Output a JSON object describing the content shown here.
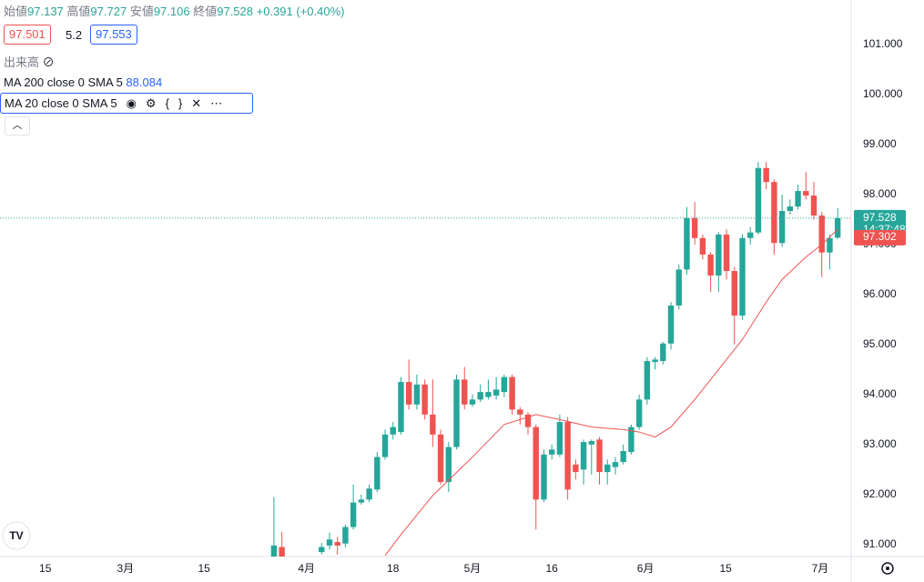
{
  "header": {
    "open_label": "始値",
    "high_label": "高値",
    "low_label": "安値",
    "close_label": "終値",
    "change": {
      "value": 0.391,
      "label": "+0.391"
    },
    "change_pct": {
      "value": 0.4,
      "label": "(+0.40%)"
    },
    "bid": 97.501,
    "spread": 5.2,
    "ask": 97.553,
    "volume_label": "出来高",
    "ma200_label": "MA 200 close 0 SMA 5",
    "ma200_value": 88.084,
    "ma20_label": "MA 20 close 0 SMA 5",
    "countdown": "14:37:48"
  },
  "chart_data": {
    "type": "candlestick",
    "up_color": "#26a69a",
    "down_color": "#ef5350",
    "x": [
      0,
      1,
      6,
      7,
      8,
      9,
      10,
      11,
      12,
      13,
      14,
      15,
      16,
      17,
      18,
      19,
      20,
      21,
      22,
      23,
      24,
      25,
      26,
      27,
      28,
      29,
      30,
      31,
      32,
      33,
      34,
      35,
      36,
      37,
      38,
      39,
      40,
      41,
      42,
      43,
      44,
      45,
      46,
      47,
      48,
      49,
      50,
      51,
      52,
      53,
      54,
      55,
      56,
      57,
      58,
      59,
      60,
      61,
      62,
      63,
      64,
      65,
      66,
      67,
      68,
      69,
      70,
      71
    ],
    "open": [
      90.7,
      90.95,
      90.85,
      90.98,
      91.05,
      91.02,
      91.35,
      91.84,
      91.9,
      92.1,
      92.75,
      93.2,
      93.25,
      94.25,
      93.8,
      94.2,
      93.6,
      93.2,
      92.25,
      92.95,
      94.3,
      93.8,
      93.9,
      93.95,
      93.98,
      94.05,
      94.35,
      93.7,
      93.6,
      93.35,
      91.9,
      92.8,
      92.8,
      93.45,
      92.6,
      92.5,
      93.0,
      93.1,
      92.45,
      92.55,
      92.65,
      92.85,
      93.35,
      93.9,
      94.65,
      94.67,
      95.02,
      95.78,
      96.5,
      97.53,
      97.13,
      96.8,
      96.38,
      97.2,
      96.47,
      95.58,
      97.13,
      97.24,
      98.53,
      98.25,
      97.03,
      97.67,
      97.76,
      98.07,
      97.98,
      97.58,
      96.84,
      97.137
    ],
    "high": [
      91.95,
      91.25,
      91.03,
      91.24,
      91.15,
      91.4,
      92.2,
      92.0,
      92.2,
      92.85,
      93.3,
      93.45,
      94.35,
      94.7,
      94.4,
      94.3,
      94.3,
      93.3,
      93.05,
      94.4,
      94.55,
      94.0,
      94.2,
      94.3,
      94.35,
      94.4,
      94.4,
      93.75,
      93.65,
      93.4,
      92.9,
      93.0,
      93.6,
      93.55,
      92.7,
      93.1,
      93.1,
      93.15,
      92.7,
      92.75,
      93.0,
      93.4,
      94.0,
      94.75,
      94.75,
      95.05,
      95.85,
      96.6,
      97.75,
      97.85,
      97.2,
      96.85,
      97.25,
      97.3,
      96.55,
      97.2,
      97.35,
      98.65,
      98.65,
      98.3,
      98.0,
      97.9,
      98.2,
      98.45,
      98.25,
      97.65,
      97.2,
      97.727
    ],
    "low": [
      90.6,
      90.6,
      90.8,
      90.9,
      90.8,
      90.95,
      91.3,
      91.8,
      91.85,
      92.05,
      92.7,
      93.1,
      93.2,
      93.7,
      93.7,
      93.5,
      92.95,
      92.2,
      92.05,
      92.9,
      93.7,
      93.75,
      93.85,
      93.9,
      93.9,
      93.95,
      93.6,
      93.4,
      93.2,
      91.3,
      91.85,
      92.7,
      92.75,
      91.9,
      92.3,
      92.2,
      92.4,
      92.2,
      92.2,
      92.4,
      92.6,
      92.8,
      93.3,
      93.8,
      94.5,
      94.6,
      94.9,
      95.7,
      96.4,
      97.0,
      96.7,
      96.05,
      96.05,
      96.3,
      95.0,
      95.5,
      97.0,
      97.2,
      98.1,
      96.8,
      96.95,
      97.6,
      97.7,
      97.9,
      97.5,
      96.35,
      96.5,
      97.106
    ],
    "close": [
      90.98,
      90.7,
      90.95,
      91.1,
      90.98,
      91.35,
      91.84,
      91.9,
      92.12,
      92.75,
      93.2,
      93.35,
      94.25,
      93.8,
      94.2,
      93.6,
      93.2,
      92.25,
      92.95,
      94.3,
      93.8,
      93.9,
      94.05,
      94.05,
      94.1,
      94.35,
      93.7,
      93.6,
      93.35,
      91.9,
      92.8,
      92.9,
      93.45,
      92.1,
      92.45,
      93.05,
      93.07,
      92.45,
      92.6,
      92.65,
      92.87,
      93.35,
      93.9,
      94.67,
      94.7,
      95.02,
      95.78,
      96.5,
      97.53,
      97.13,
      96.8,
      96.38,
      97.2,
      96.47,
      95.58,
      97.13,
      97.24,
      98.53,
      98.25,
      97.03,
      97.67,
      97.76,
      98.07,
      97.98,
      97.58,
      96.84,
      97.13,
      97.528
    ],
    "ma": {
      "color": "#ef5350",
      "x": [
        14,
        16,
        20,
        25,
        29,
        33,
        36,
        40,
        44,
        46,
        48,
        50,
        53,
        56,
        59,
        62,
        64,
        67,
        69,
        71
      ],
      "values": [
        90.78,
        91.2,
        91.98,
        92.75,
        93.4,
        93.6,
        93.5,
        93.35,
        93.3,
        93.25,
        93.15,
        93.35,
        93.9,
        94.5,
        95.1,
        95.85,
        96.3,
        96.75,
        97.0,
        97.302
      ]
    },
    "xlim": [
      -34.5,
      72.7
    ],
    "ylim": [
      90.76,
      101.89
    ],
    "xticks": [
      {
        "value": -28.8,
        "label": "15"
      },
      {
        "value": -18.7,
        "label": "3月"
      },
      {
        "value": -8.8,
        "label": "15"
      },
      {
        "value": 4.1,
        "label": "4月"
      },
      {
        "value": 15,
        "label": "18"
      },
      {
        "value": 25,
        "label": "5月"
      },
      {
        "value": 35,
        "label": "16"
      },
      {
        "value": 46.8,
        "label": "6月"
      },
      {
        "value": 56.9,
        "label": "15"
      },
      {
        "value": 68.8,
        "label": "7月"
      }
    ],
    "yticks": [
      {
        "value": 91,
        "label": "91.000"
      },
      {
        "value": 92,
        "label": "92.000"
      },
      {
        "value": 93,
        "label": "93.000"
      },
      {
        "value": 94,
        "label": "94.000"
      },
      {
        "value": 95,
        "label": "95.000"
      },
      {
        "value": 96,
        "label": "96.000"
      },
      {
        "value": 97,
        "label": "97.000"
      },
      {
        "value": 98,
        "label": "98.000"
      },
      {
        "value": 99,
        "label": "99.000"
      },
      {
        "value": 100,
        "label": "100.000"
      },
      {
        "value": 101,
        "label": "101.000"
      }
    ]
  }
}
